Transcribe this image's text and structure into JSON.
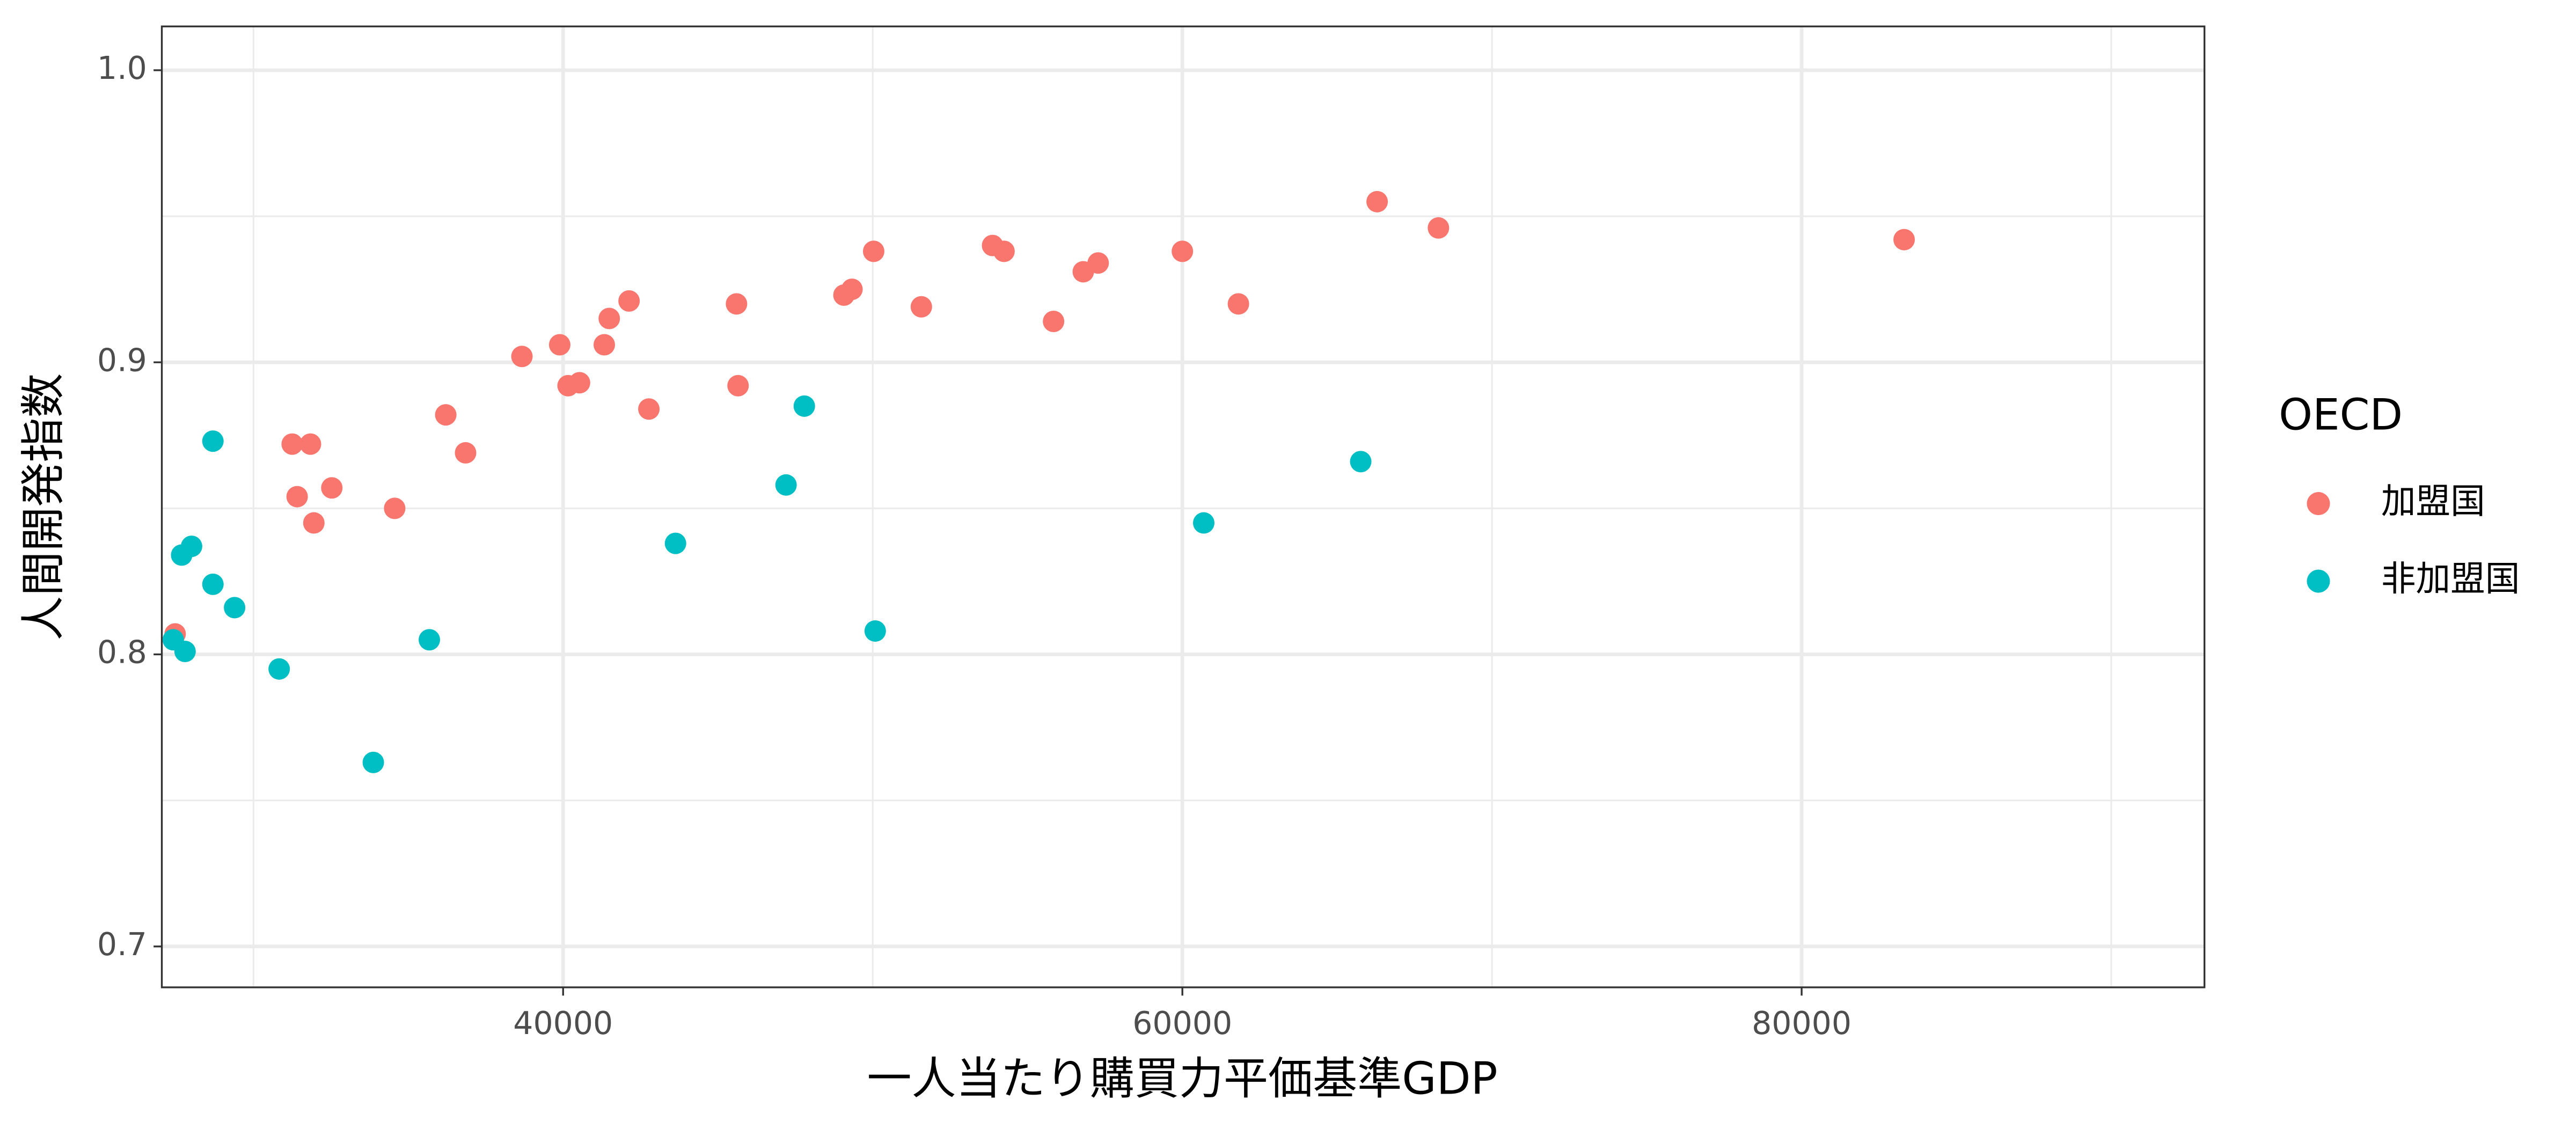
{
  "chart_data": {
    "type": "scatter",
    "xlabel": "一人当たり購買力平価基準GDP",
    "ylabel": "人間開発指数",
    "legend_title": "OECD",
    "legend": "right",
    "grid": true,
    "xlim": [
      27040,
      93010
    ],
    "ylim": [
      0.686,
      1.015
    ],
    "xticks": [
      40000,
      60000,
      80000
    ],
    "yticks": [
      {
        "value": 0.7,
        "label": "0.7"
      },
      {
        "value": 0.8,
        "label": "0.8"
      },
      {
        "value": 0.9,
        "label": "0.9"
      },
      {
        "value": 1.0,
        "label": "1.0"
      }
    ],
    "xminor": [
      30000,
      50000,
      70000,
      90000
    ],
    "yminor": [
      0.75,
      0.85,
      0.95
    ],
    "series": [
      {
        "name": "加盟国",
        "color": "#F8766D",
        "x": [
          27470,
          31250,
          31840,
          31410,
          31950,
          32530,
          34560,
          36210,
          36850,
          38670,
          39890,
          40160,
          40530,
          41330,
          41490,
          42130,
          42770,
          45600,
          45650,
          49070,
          49330,
          50030,
          51570,
          53870,
          54240,
          55840,
          56800,
          57280,
          60000,
          61810,
          66290,
          68270,
          83310
        ],
        "values": [
          0.807,
          0.872,
          0.872,
          0.854,
          0.845,
          0.857,
          0.85,
          0.882,
          0.869,
          0.902,
          0.906,
          0.892,
          0.893,
          0.906,
          0.915,
          0.921,
          0.884,
          0.92,
          0.892,
          0.923,
          0.925,
          0.938,
          0.919,
          0.94,
          0.938,
          0.914,
          0.931,
          0.934,
          0.938,
          0.92,
          0.955,
          0.946,
          0.942
        ]
      },
      {
        "name": "非加盟国",
        "color": "#00BFC4",
        "x": [
          27410,
          27680,
          27790,
          28000,
          28690,
          28690,
          29390,
          30830,
          33870,
          35680,
          43630,
          47200,
          47790,
          50080,
          60690,
          65760
        ],
        "values": [
          0.805,
          0.834,
          0.801,
          0.837,
          0.873,
          0.824,
          0.816,
          0.795,
          0.763,
          0.805,
          0.838,
          0.858,
          0.885,
          0.808,
          0.845,
          0.866
        ]
      }
    ]
  }
}
